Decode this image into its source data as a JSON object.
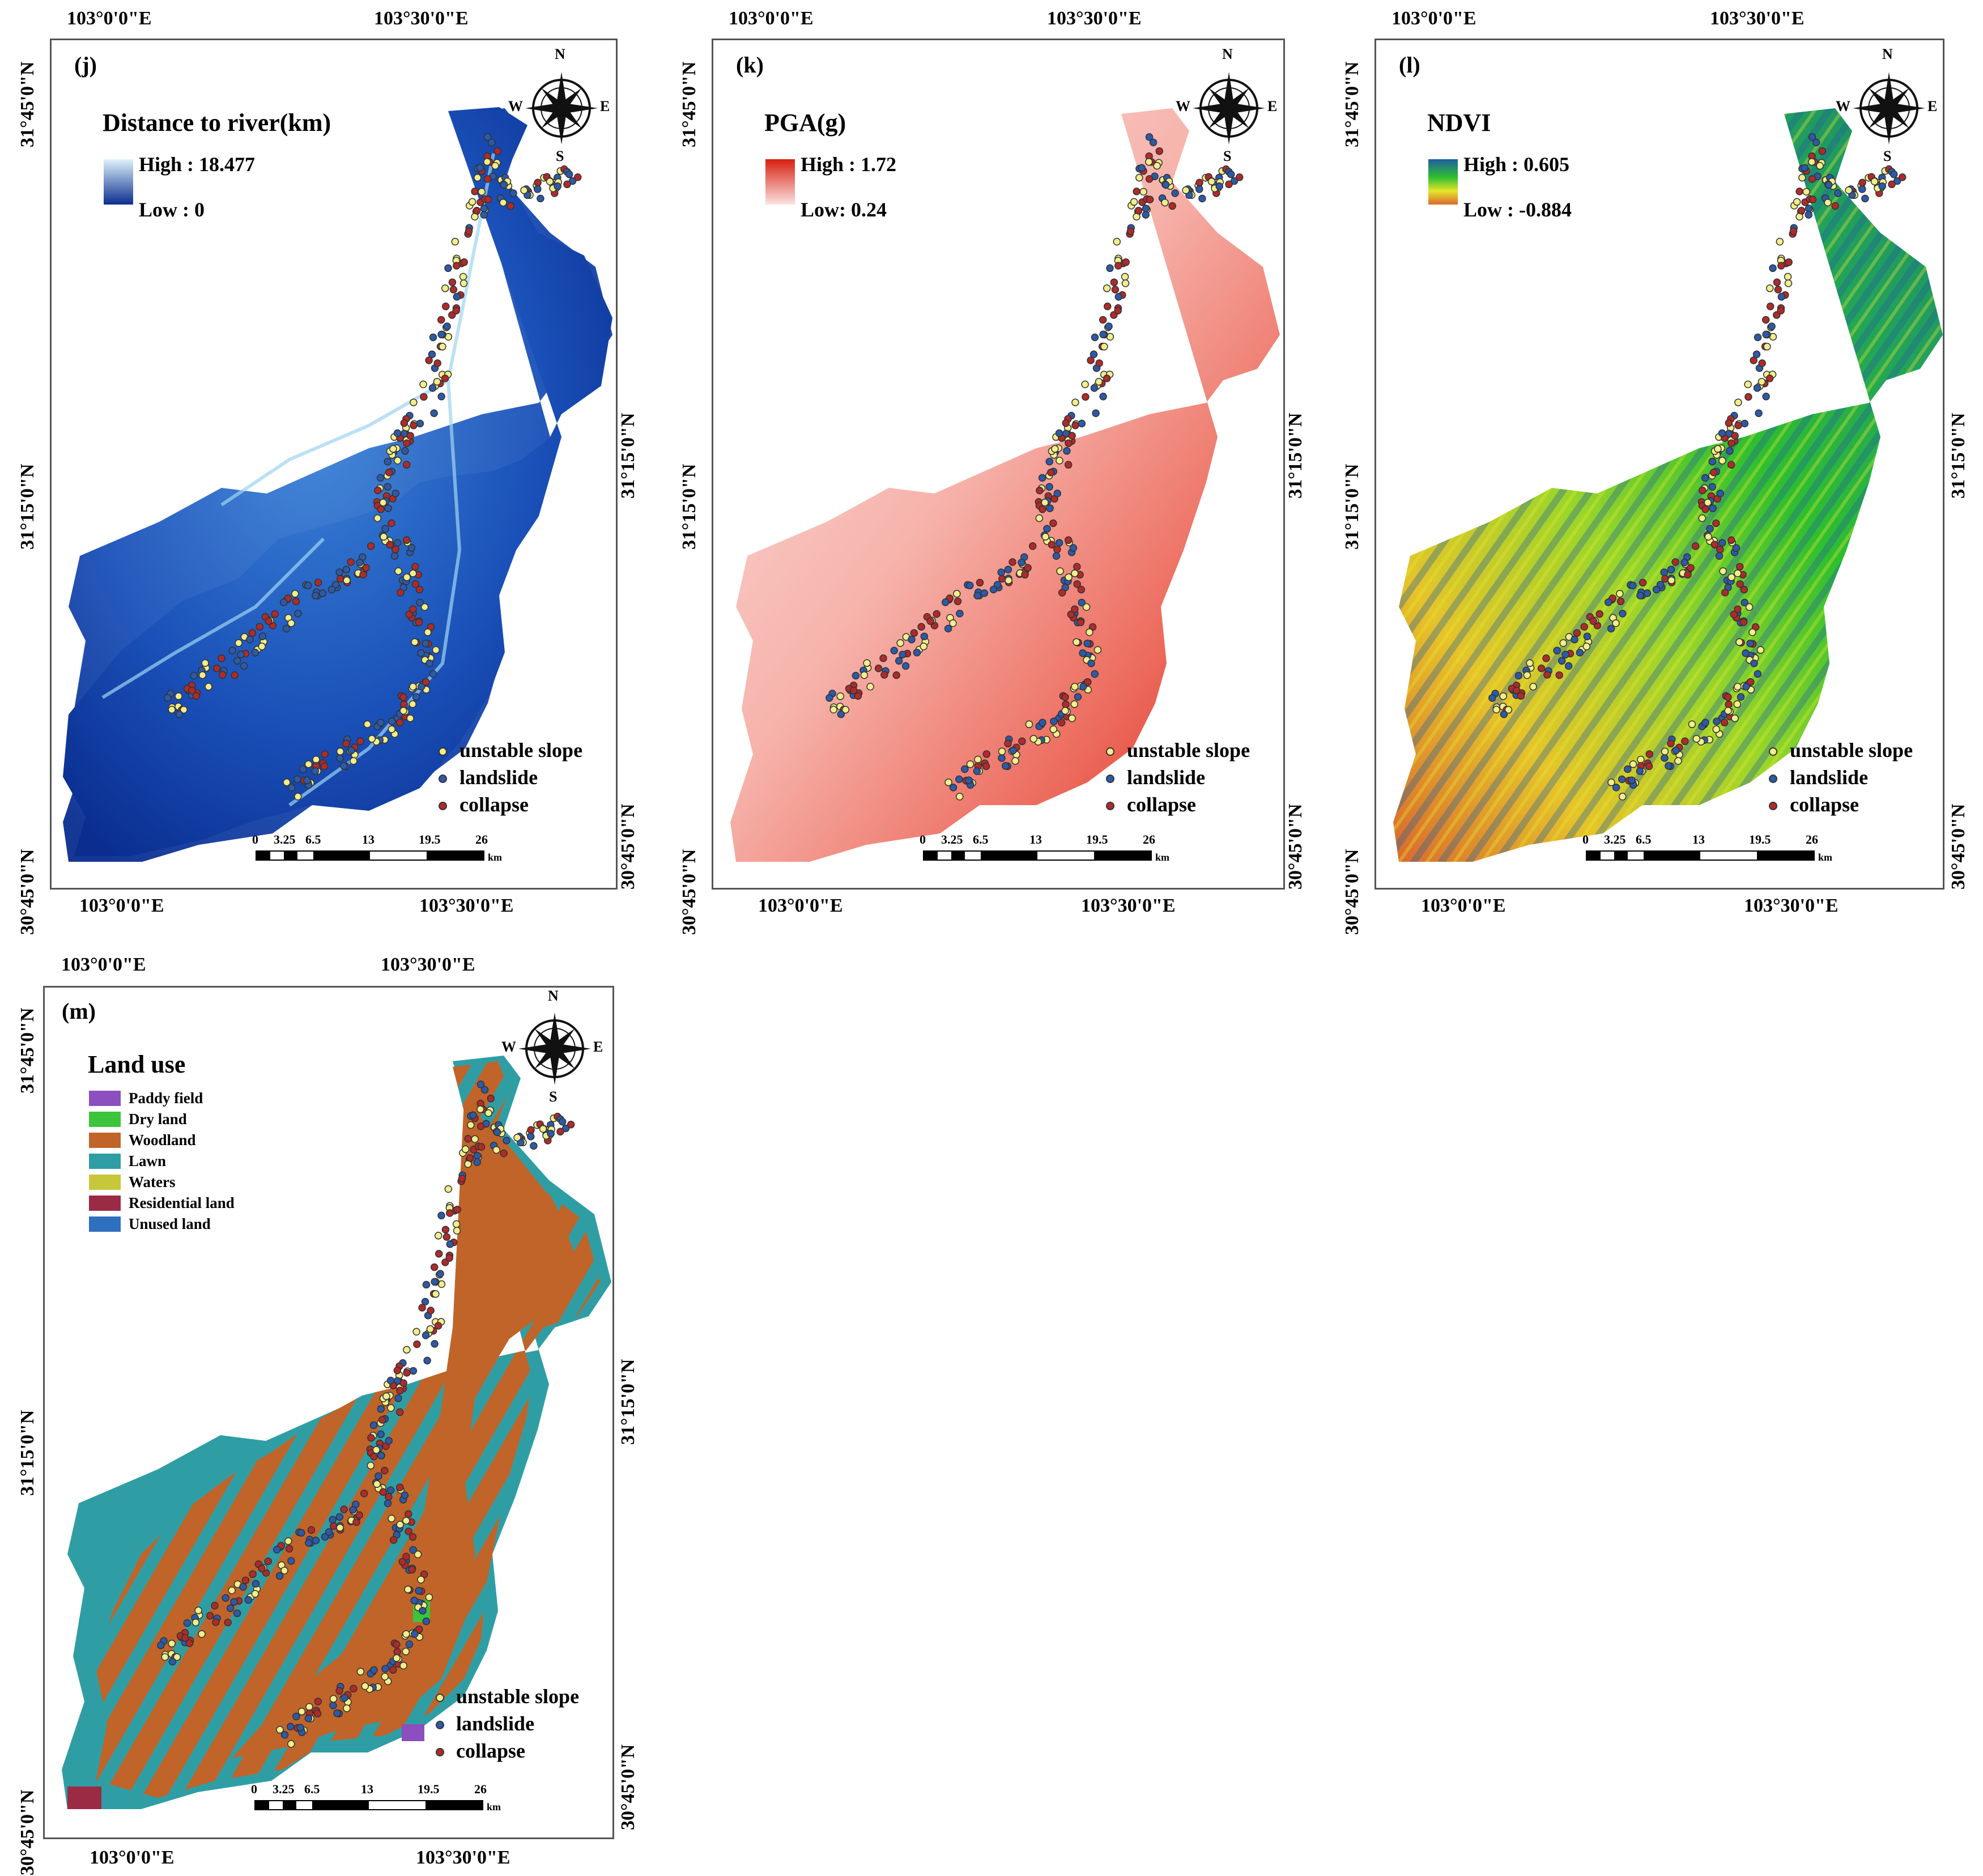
{
  "coords": {
    "top_west": "103°0'0\"E",
    "top_east": "103°30'0\"E",
    "bottom_west": "103°0'0\"E",
    "bottom_east": "103°30'0\"E",
    "lat_north": "31°45'0\"N",
    "lat_mid": "31°15'0\"N",
    "lat_south": "30°45'0\"N"
  },
  "compass": {
    "n": "N",
    "s": "S",
    "e": "E",
    "w": "W"
  },
  "points_legend": [
    "unstable slope",
    "landslide",
    "collapse"
  ],
  "point_colors": {
    "unstable slope": "#f3ee8a",
    "landslide": "#2c5aa8",
    "collapse": "#b02a2a"
  },
  "scale_bar": {
    "ticks": [
      "0",
      "3.25",
      "6.5",
      "13",
      "19.5",
      "26"
    ],
    "unit": "km"
  },
  "panels": {
    "j": {
      "label": "(j)",
      "title": "Distance to river(km)",
      "high": "High : 18.477",
      "low": "Low : 0",
      "colors": {
        "high": "#dff3fb",
        "low": "#0a2d8f"
      }
    },
    "k": {
      "label": "(k)",
      "title": "PGA(g)",
      "high": "High : 1.72",
      "low": "Low: 0.24",
      "colors": {
        "high": "#d71f10",
        "low": "#fbe3e1"
      }
    },
    "l": {
      "label": "(l)",
      "title": "NDVI",
      "high": "High : 0.605",
      "low": "Low : -0.884",
      "colors": {
        "high": "#1f5fa0",
        "mid": "#2fbf2f",
        "yellow": "#e6e62a",
        "low": "#d9682e"
      }
    },
    "m": {
      "label": "(m)",
      "title": "Land use",
      "classes": [
        {
          "name": "Paddy field",
          "color": "#8b4fbf"
        },
        {
          "name": "Dry land",
          "color": "#3cc43c"
        },
        {
          "name": "Woodland",
          "color": "#c0642a"
        },
        {
          "name": "Lawn",
          "color": "#2f9ea4"
        },
        {
          "name": "Waters",
          "color": "#c7c73a"
        },
        {
          "name": "Residential land",
          "color": "#9b2a45"
        },
        {
          "name": "Unused land",
          "color": "#2f6fbf"
        }
      ]
    }
  }
}
